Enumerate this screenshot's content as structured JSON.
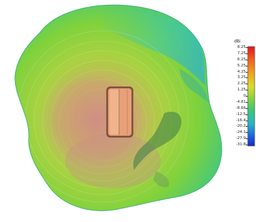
{
  "legend": {
    "unit": "dBi",
    "ticks": [
      "8.25",
      "7.25",
      "6.25",
      "5.25",
      "4.25",
      "3.25",
      "2.25",
      "1.25",
      "0",
      "-4.81",
      "-8.66",
      "-12.5",
      "-16.4",
      "-20.2",
      "-24.1",
      "-27.9",
      "-31.8"
    ],
    "colors": {
      "top": "#e8141e",
      "upper": "#f08c1e",
      "mid_high": "#e6dc28",
      "mid": "#8cd23c",
      "low_mid": "#3cc878",
      "low": "#28b4c8",
      "bottom": "#1428c8"
    }
  },
  "pattern_colors": {
    "outer": "#3cc88c",
    "green": "#7fd23c",
    "yellow_green": "#b4d737",
    "core": "#d28c82",
    "device_body": "#e8a078",
    "device_edge": "#8c5a46"
  }
}
